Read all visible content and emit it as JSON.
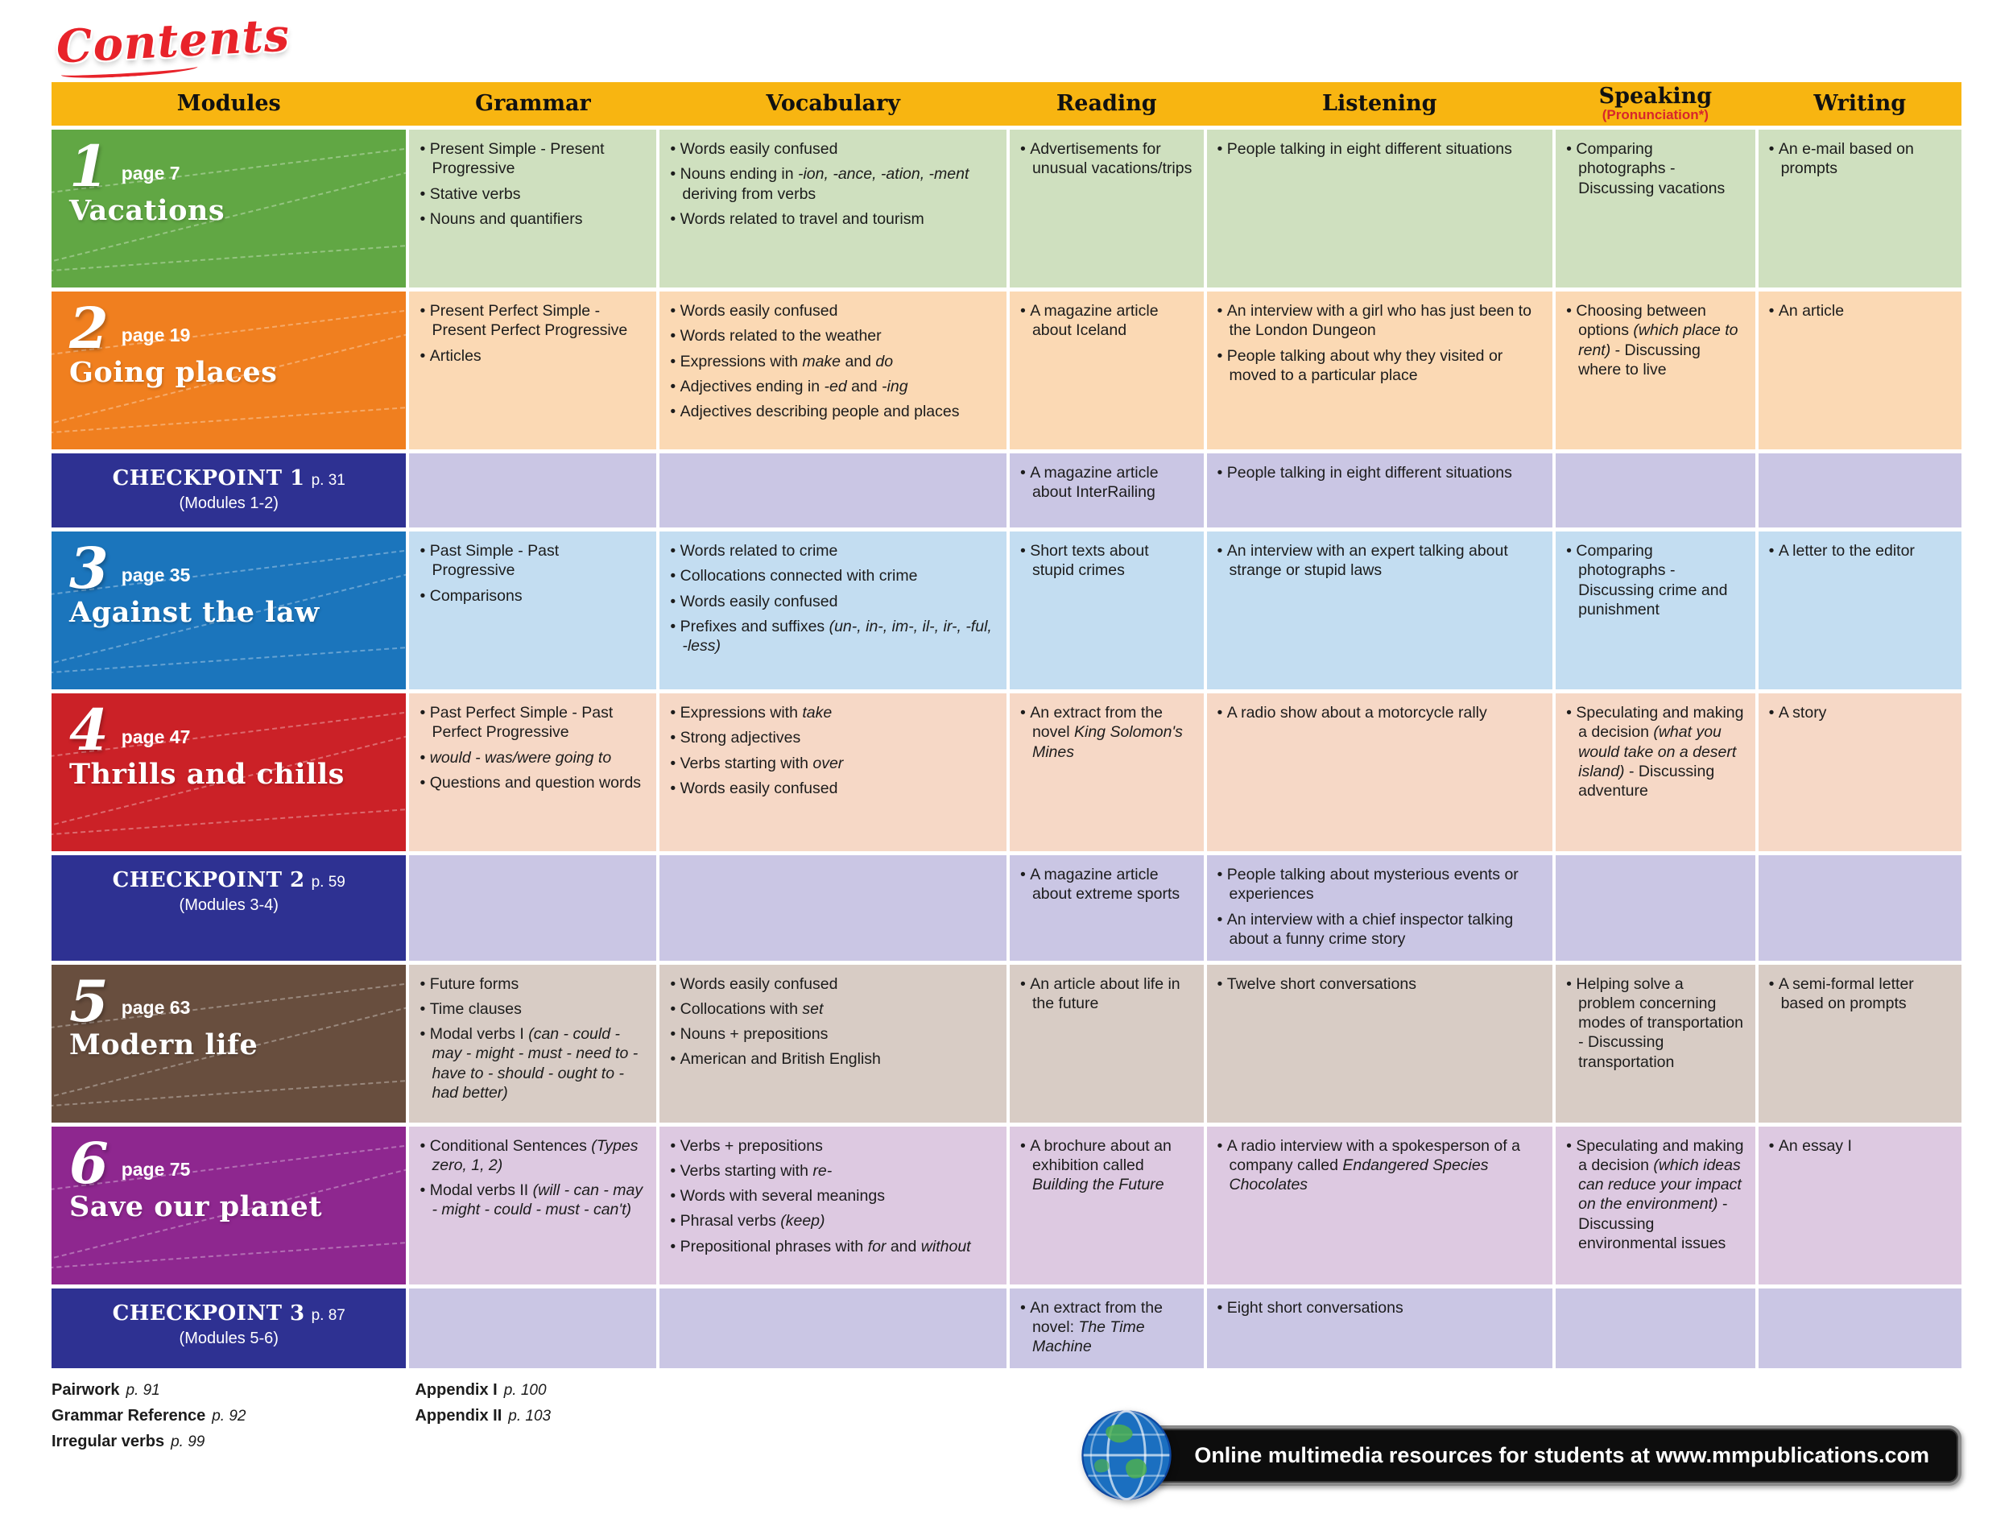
{
  "logo": {
    "text": "Contents"
  },
  "colors": {
    "header_bg": "#f8b511",
    "header_sub": "#d7262c",
    "checkpoint_label": "#2e3192",
    "checkpoint_cell": "#cac6e4"
  },
  "header": {
    "columns": [
      "Modules",
      "Grammar",
      "Vocabulary",
      "Reading",
      "Listening",
      "Speaking",
      "Writing"
    ],
    "speaking_sub": "(Pronunciation*)"
  },
  "rows": [
    {
      "type": "module",
      "number": "1",
      "page": "page 7",
      "title": "Vacations",
      "label_color": "#61a744",
      "cell_color": "#cfe0bf",
      "grammar": [
        "Present Simple - Present Progressive",
        "Stative verbs",
        "Nouns and quantifiers"
      ],
      "vocabulary": [
        "Words easily confused",
        "Nouns ending in *-ion, -ance, -ation, -ment* deriving from verbs",
        "Words related to travel and tourism"
      ],
      "reading": [
        "Advertisements for unusual vacations/trips"
      ],
      "listening": [
        "People talking in eight different situations"
      ],
      "speaking": [
        "Comparing photographs - Discussing vacations"
      ],
      "writing": [
        "An e-mail based on prompts"
      ]
    },
    {
      "type": "module",
      "number": "2",
      "page": "page 19",
      "title": "Going places",
      "label_color": "#f07f1f",
      "cell_color": "#fbd9b4",
      "grammar": [
        "Present Perfect Simple - Present Perfect Progressive",
        "Articles"
      ],
      "vocabulary": [
        "Words easily confused",
        "Words related to the weather",
        "Expressions with *make* and *do*",
        "Adjectives ending in *-ed* and *-ing*",
        "Adjectives describing people and places"
      ],
      "reading": [
        "A magazine article about Iceland"
      ],
      "listening": [
        "An interview with a girl who has just been to the London Dungeon",
        "People talking about why they visited or moved to a particular place"
      ],
      "speaking": [
        "Choosing between options *(which place to rent)* - Discussing where to live"
      ],
      "writing": [
        "An article"
      ]
    },
    {
      "type": "checkpoint",
      "title": "CHECKPOINT 1",
      "page": "p. 31",
      "subtitle": "(Modules 1-2)",
      "grammar": [],
      "vocabulary": [],
      "reading": [
        "A magazine article about InterRailing"
      ],
      "listening": [
        "People talking in eight different situations"
      ],
      "speaking": [],
      "writing": []
    },
    {
      "type": "module",
      "number": "3",
      "page": "page 35",
      "title": "Against the law",
      "label_color": "#1b75bc",
      "cell_color": "#c3ddf1",
      "grammar": [
        "Past Simple - Past Progressive",
        "Comparisons"
      ],
      "vocabulary": [
        "Words related to crime",
        "Collocations connected with crime",
        "Words easily confused",
        "Prefixes and suffixes *(un-, in-, im-, il-, ir-, -ful, -less)*"
      ],
      "reading": [
        "Short texts about stupid crimes"
      ],
      "listening": [
        "An interview with an expert talking about strange or stupid laws"
      ],
      "speaking": [
        "Comparing photographs - Discussing crime and punishment"
      ],
      "writing": [
        "A letter to the editor"
      ]
    },
    {
      "type": "module",
      "number": "4",
      "page": "page 47",
      "title": "Thrills and chills",
      "label_color": "#cb2127",
      "cell_color": "#f6d8c6",
      "grammar": [
        "Past Perfect Simple - Past Perfect Progressive",
        "*would - was/were going to*",
        "Questions and question words"
      ],
      "vocabulary": [
        "Expressions with *take*",
        "Strong adjectives",
        "Verbs starting with *over*",
        "Words easily confused"
      ],
      "reading": [
        "An extract from the novel *King Solomon's Mines*"
      ],
      "listening": [
        "A radio show about a motorcycle rally"
      ],
      "speaking": [
        "Speculating and making a decision *(what you would take on a desert island)* - Discussing adventure"
      ],
      "writing": [
        "A story"
      ]
    },
    {
      "type": "checkpoint",
      "title": "CHECKPOINT 2",
      "page": "p. 59",
      "subtitle": "(Modules 3-4)",
      "grammar": [],
      "vocabulary": [],
      "reading": [
        "A magazine article about extreme sports"
      ],
      "listening": [
        "People talking about mysterious events or experiences",
        "An interview with a chief inspector talking about a funny crime story"
      ],
      "speaking": [],
      "writing": []
    },
    {
      "type": "module",
      "number": "5",
      "page": "page 63",
      "title": "Modern life",
      "label_color": "#684e3e",
      "cell_color": "#d8ccc5",
      "grammar": [
        "Future forms",
        "Time clauses",
        "Modal verbs I *(can - could - may - might - must - need to - have to - should - ought to - had better)*"
      ],
      "vocabulary": [
        "Words easily confused",
        "Collocations with *set*",
        "Nouns + prepositions",
        "American and British English"
      ],
      "reading": [
        "An article about life in the future"
      ],
      "listening": [
        "Twelve short conversations"
      ],
      "speaking": [
        "Helping solve a problem concerning modes of transportation - Discussing transportation"
      ],
      "writing": [
        "A semi-formal letter based on prompts"
      ]
    },
    {
      "type": "module",
      "number": "6",
      "page": "page 75",
      "title": "Save our planet",
      "label_color": "#8e278f",
      "cell_color": "#ddc9e1",
      "grammar": [
        "Conditional Sentences *(Types zero, 1, 2)*",
        "Modal verbs II *(will - can - may - might - could - must - can't)*"
      ],
      "vocabulary": [
        "Verbs + prepositions",
        "Verbs starting with *re-*",
        "Words with several meanings",
        "Phrasal verbs *(keep)*",
        "Prepositional phrases with *for* and *without*"
      ],
      "reading": [
        "A brochure about an exhibition called *Building the Future*"
      ],
      "listening": [
        "A radio interview with a spokesperson of a company called *Endangered Species Chocolates*"
      ],
      "speaking": [
        "Speculating and making a decision *(which ideas can reduce your impact on the environment)* - Discussing environmental issues"
      ],
      "writing": [
        "An essay I"
      ]
    },
    {
      "type": "checkpoint",
      "title": "CHECKPOINT 3",
      "page": "p. 87",
      "subtitle": "(Modules 5-6)",
      "grammar": [],
      "vocabulary": [],
      "reading": [
        "An extract from the novel: *The Time Machine*"
      ],
      "listening": [
        "Eight short conversations"
      ],
      "speaking": [],
      "writing": []
    }
  ],
  "footer": {
    "col1": [
      {
        "label": "Pairwork",
        "page": "p. 91"
      },
      {
        "label": "Grammar Reference",
        "page": "p. 92"
      },
      {
        "label": "Irregular verbs",
        "page": "p. 99"
      }
    ],
    "col2": [
      {
        "label": "Appendix I",
        "page": "p. 100"
      },
      {
        "label": "Appendix II",
        "page": "p. 103"
      }
    ],
    "banner": "Online multimedia resources for students at www.mmpublications.com"
  }
}
